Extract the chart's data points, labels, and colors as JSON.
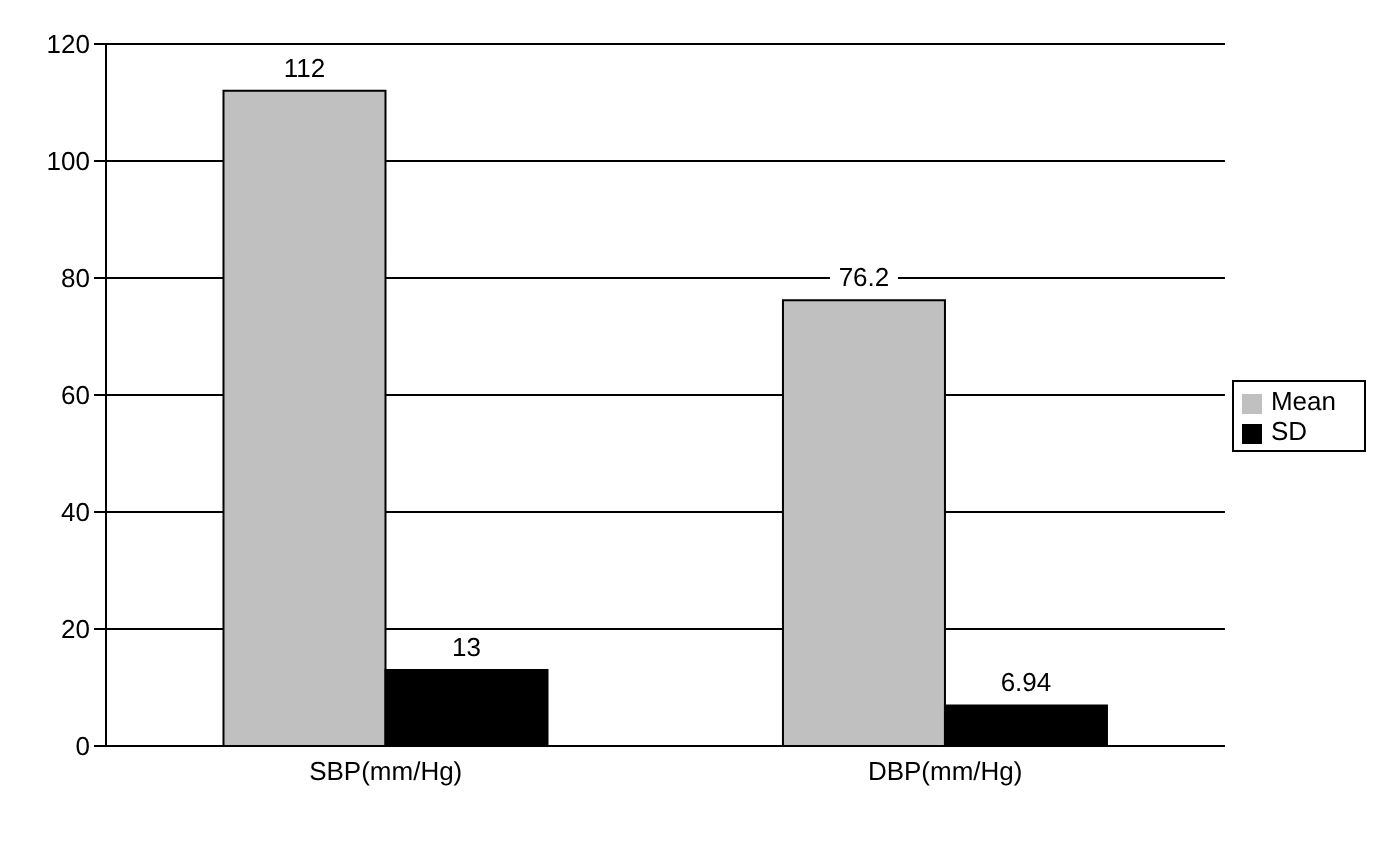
{
  "chart_data": {
    "type": "bar",
    "categories": [
      "SBP(mm/Hg)",
      "DBP(mm/Hg)"
    ],
    "series": [
      {
        "name": "Mean",
        "color": "#c0c0c0",
        "values": [
          112,
          76.2
        ]
      },
      {
        "name": "SD",
        "color": "#000000",
        "values": [
          13,
          6.94
        ]
      }
    ],
    "ylim": [
      0,
      120
    ],
    "yticks": [
      0,
      20,
      40,
      60,
      80,
      100,
      120
    ],
    "grid": "y",
    "legend": "right",
    "data_labels": true
  }
}
